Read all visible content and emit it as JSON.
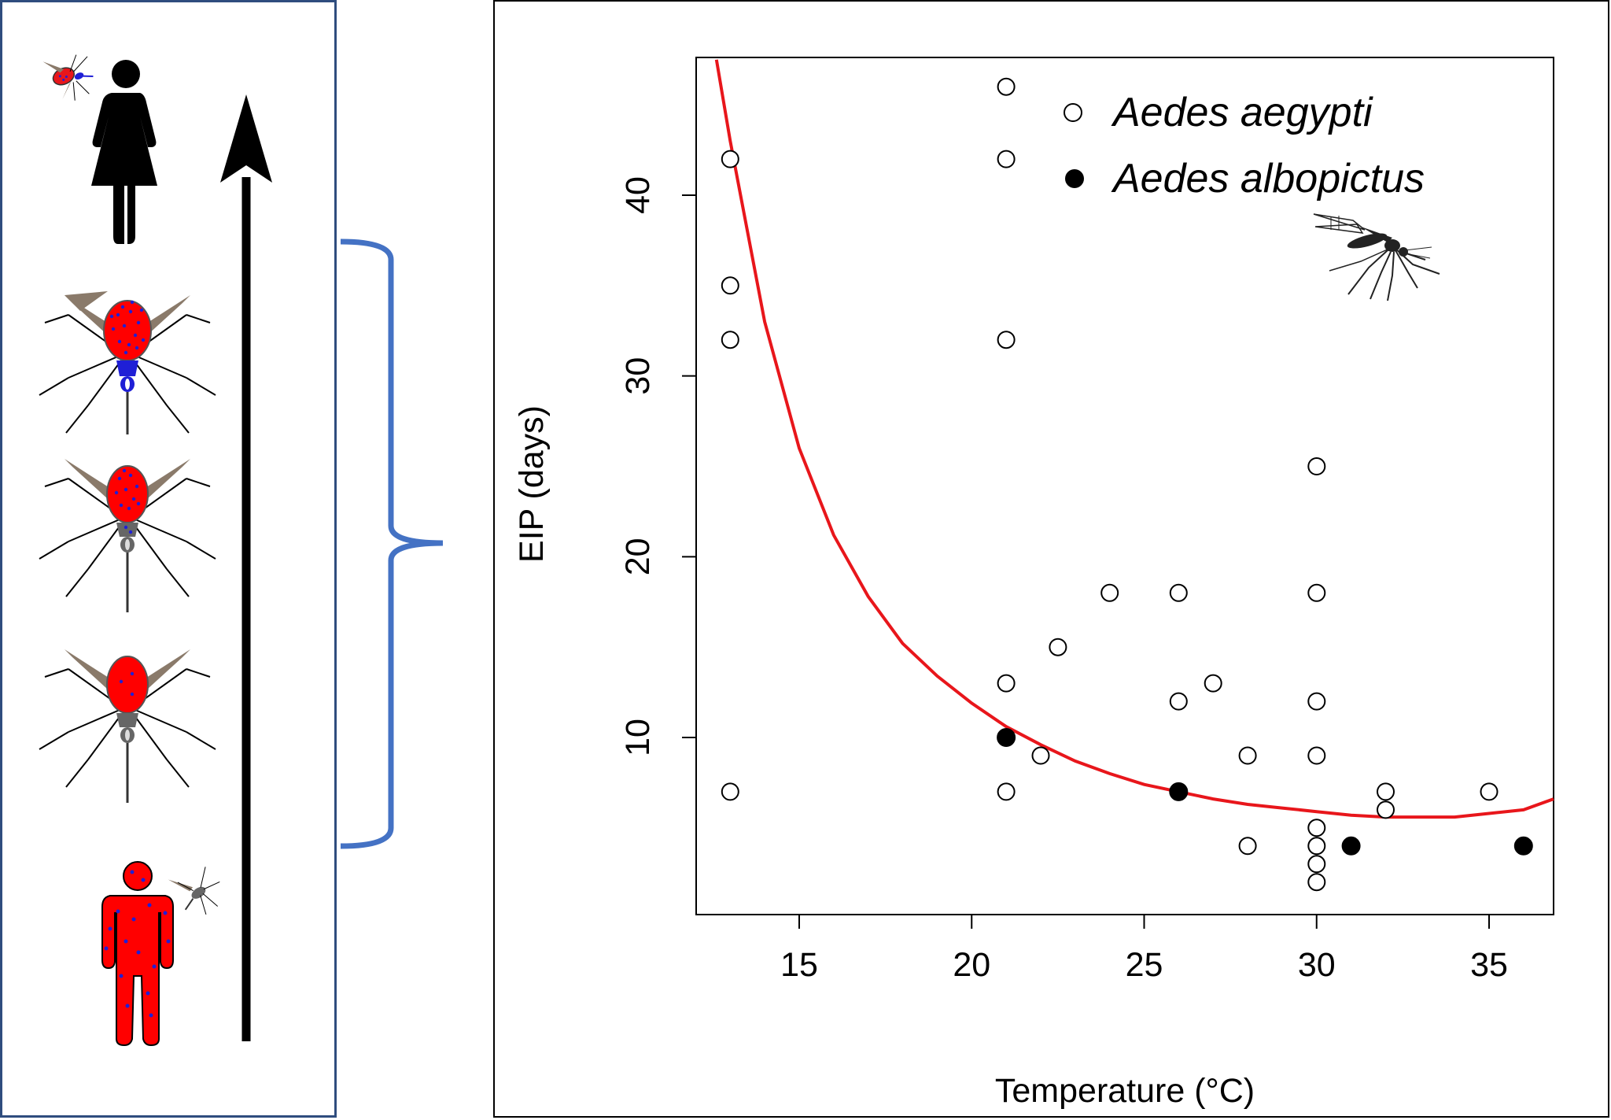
{
  "colors": {
    "panel_border": "#2f4d7e",
    "bracket": "#4472c4",
    "curve": "#e8161b",
    "infected_red": "#ff0000",
    "virus_blue": "#1f1fd6",
    "wing_brown": "#8a7a6a",
    "body_gray": "#666666"
  },
  "icons": {
    "top": "person-being-bitten-icon",
    "mosquito_1": "mosquito-saliva-infected-icon",
    "mosquito_2": "mosquito-disseminated-icon",
    "mosquito_3": "mosquito-midgut-infected-icon",
    "bottom": "infected-human-icon",
    "arrow": "up-arrow-icon",
    "bracket": "curly-brace-icon",
    "chart_mosquito": "mosquito-silhouette-icon"
  },
  "chart_data": {
    "type": "scatter",
    "title": "",
    "xlabel": "Temperature (°C)",
    "ylabel": "EIP (days)",
    "xlim": [
      12,
      37
    ],
    "ylim": [
      0,
      47.5
    ],
    "xticks": [
      15,
      20,
      25,
      30,
      35
    ],
    "yticks": [
      10,
      20,
      30,
      40
    ],
    "legend": "top-right",
    "series": [
      {
        "name": "Aedes aegypti",
        "marker": "open-circle",
        "points": [
          [
            13,
            42
          ],
          [
            13,
            35
          ],
          [
            13,
            32
          ],
          [
            13,
            7
          ],
          [
            21,
            46
          ],
          [
            21,
            42
          ],
          [
            21,
            32
          ],
          [
            21,
            13
          ],
          [
            21,
            7
          ],
          [
            22,
            9
          ],
          [
            22.5,
            15
          ],
          [
            24,
            18
          ],
          [
            26,
            18
          ],
          [
            26,
            12
          ],
          [
            27,
            13
          ],
          [
            28,
            9
          ],
          [
            28,
            4
          ],
          [
            30,
            25
          ],
          [
            30,
            18
          ],
          [
            30,
            12
          ],
          [
            30,
            9
          ],
          [
            30,
            5
          ],
          [
            30,
            4
          ],
          [
            30,
            3
          ],
          [
            30,
            2
          ],
          [
            32,
            7
          ],
          [
            32,
            6
          ],
          [
            35,
            7
          ]
        ]
      },
      {
        "name": "Aedes albopictus",
        "marker": "filled-circle",
        "points": [
          [
            21,
            10
          ],
          [
            26,
            7
          ],
          [
            31,
            4
          ],
          [
            36,
            4
          ]
        ]
      }
    ],
    "fit_curve": {
      "color": "#e8161b",
      "x": [
        12.6,
        13,
        14,
        15,
        16,
        17,
        18,
        19,
        20,
        21,
        22,
        23,
        24,
        25,
        26,
        27,
        28,
        29,
        30,
        31,
        32,
        33,
        34,
        35,
        36,
        37
      ],
      "y": [
        47.5,
        43,
        33,
        26,
        21.2,
        17.8,
        15.2,
        13.4,
        11.9,
        10.6,
        9.6,
        8.7,
        8,
        7.4,
        7,
        6.6,
        6.3,
        6.1,
        5.9,
        5.7,
        5.6,
        5.6,
        5.6,
        5.8,
        6,
        6.6
      ]
    }
  }
}
